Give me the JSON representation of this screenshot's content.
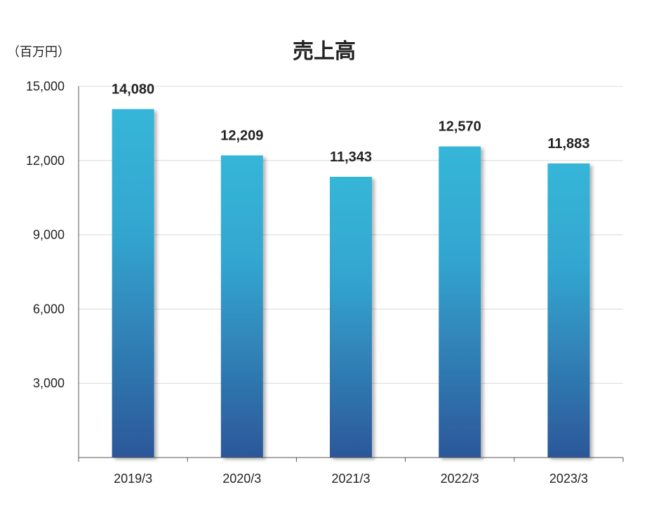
{
  "chart_data": {
    "type": "bar",
    "title": "売上高",
    "unit_label": "（百万円）",
    "xlabel": "",
    "ylabel": "",
    "categories": [
      "2019/3",
      "2020/3",
      "2021/3",
      "2022/3",
      "2023/3"
    ],
    "values": [
      14080,
      12209,
      11343,
      12570,
      11883
    ],
    "value_labels": [
      "14,080",
      "12,209",
      "11,343",
      "12,570",
      "11,883"
    ],
    "ylim": [
      0,
      15000
    ],
    "yticks": [
      3000,
      6000,
      9000,
      12000,
      15000
    ],
    "ytick_labels": [
      "3,000",
      "6,000",
      "9,000",
      "12,000",
      "15,000"
    ],
    "grid": true,
    "legend": "none",
    "colors": {
      "bar_top": "#36b6d8",
      "bar_bottom": "#2c5799",
      "grid": "#d9d9d9",
      "axis": "#555555",
      "text": "#222222"
    }
  }
}
